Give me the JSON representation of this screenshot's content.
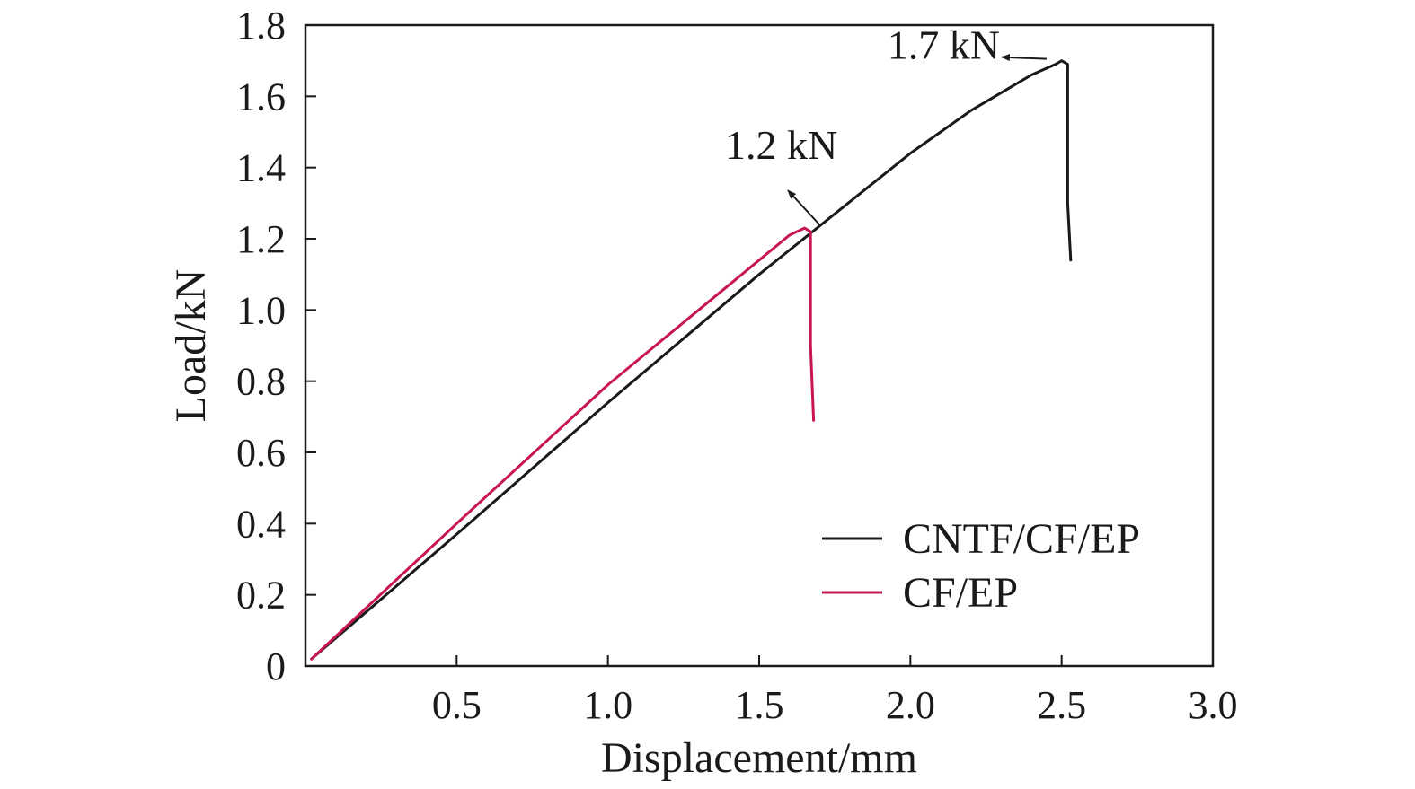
{
  "chart_data": {
    "type": "line",
    "xlabel": "Displacement/mm",
    "ylabel": "Load/kN",
    "xlim": [
      0,
      3.0
    ],
    "ylim": [
      0,
      1.8
    ],
    "xticks": [
      0.5,
      1.0,
      1.5,
      2.0,
      2.5,
      3.0
    ],
    "xtick_labels": [
      "0.5",
      "1.0",
      "1.5",
      "2.0",
      "2.5",
      "3.0"
    ],
    "yticks": [
      0,
      0.2,
      0.4,
      0.6,
      0.8,
      1.0,
      1.2,
      1.4,
      1.6,
      1.8
    ],
    "ytick_labels": [
      "0",
      "0.2",
      "0.4",
      "0.6",
      "0.8",
      "1.0",
      "1.2",
      "1.4",
      "1.6",
      "1.8"
    ],
    "grid": false,
    "legend_position": "lower-right",
    "series": [
      {
        "name": "CNTF/CF/EP",
        "color": "#1a1a1a",
        "x": [
          0.02,
          0.5,
          1.0,
          1.5,
          2.0,
          2.2,
          2.4,
          2.48,
          2.5,
          2.52,
          2.52,
          2.53
        ],
        "y": [
          0.02,
          0.37,
          0.74,
          1.1,
          1.44,
          1.56,
          1.66,
          1.69,
          1.7,
          1.69,
          1.3,
          1.14
        ]
      },
      {
        "name": "CF/EP",
        "color": "#c8174e",
        "x": [
          0.02,
          0.5,
          1.0,
          1.5,
          1.6,
          1.65,
          1.67,
          1.67,
          1.68
        ],
        "y": [
          0.02,
          0.4,
          0.79,
          1.14,
          1.21,
          1.23,
          1.22,
          0.9,
          0.69
        ]
      }
    ],
    "annotations": [
      {
        "text": "1.7 kN",
        "target_x": 2.48,
        "target_y": 1.7
      },
      {
        "text": "1.2 kN",
        "target_x": 1.61,
        "target_y": 1.24
      }
    ]
  }
}
